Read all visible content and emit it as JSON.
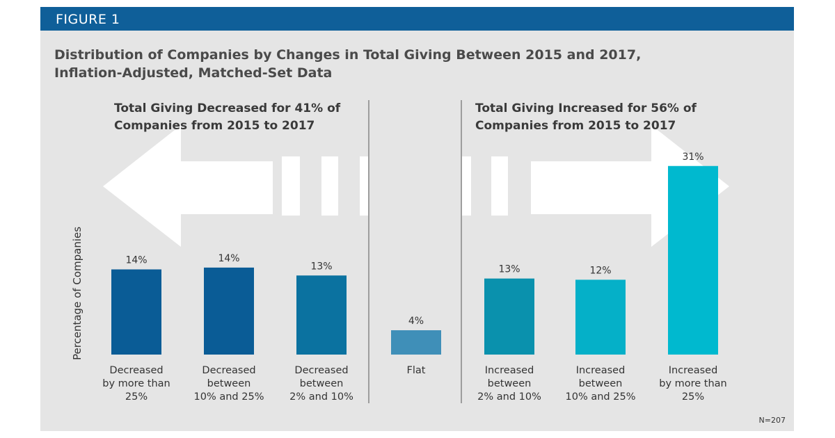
{
  "figure_label": "FIGURE 1",
  "chart_data": {
    "type": "bar",
    "title": "Distribution of Companies by Changes in Total Giving Between 2015 and 2017, Inflation-Adjusted, Matched-Set Data",
    "title_lines": [
      "Distribution of Companies by Changes in Total Giving Between 2015 and 2017,",
      "Inflation-Adjusted, Matched-Set Data"
    ],
    "ylabel": "Percentage of Companies",
    "xlabel": "",
    "ylim": [
      0,
      32
    ],
    "grid": false,
    "groups": [
      {
        "label_lines": [
          "Total Giving Decreased for 41% of",
          "Companies from 2015 to 2017"
        ],
        "direction": "left"
      },
      {
        "label_lines": [
          "Total Giving Increased for 56% of",
          "Companies from 2015 to 2017"
        ],
        "direction": "right"
      }
    ],
    "bars": [
      {
        "category_lines": [
          "Decreased",
          "by more than",
          "25%"
        ],
        "value": 14,
        "label": "14%",
        "color": "#0a5c96"
      },
      {
        "category_lines": [
          "Decreased",
          "between",
          "10% and 25%"
        ],
        "value": 14.3,
        "label": "14%",
        "color": "#0a5c96"
      },
      {
        "category_lines": [
          "Decreased",
          "between",
          "2% and 10%"
        ],
        "value": 13,
        "label": "13%",
        "color": "#0b72a0"
      },
      {
        "category_lines": [
          "Flat"
        ],
        "value": 4,
        "label": "4%",
        "color": "#3f8fb8"
      },
      {
        "category_lines": [
          "Increased",
          "between",
          "2% and 10%"
        ],
        "value": 12.5,
        "label": "13%",
        "color": "#0a91ad"
      },
      {
        "category_lines": [
          "Increased",
          "between",
          "10% and 25%"
        ],
        "value": 12.3,
        "label": "12%",
        "color": "#05b0c8"
      },
      {
        "category_lines": [
          "Increased",
          "by more than",
          "25%"
        ],
        "value": 31,
        "label": "31%",
        "color": "#00b9cf"
      }
    ]
  },
  "footnote": "N=207",
  "colors": {
    "header": "#0f5f99",
    "panel": "#e5e5e5",
    "arrow": "#ffffff"
  }
}
